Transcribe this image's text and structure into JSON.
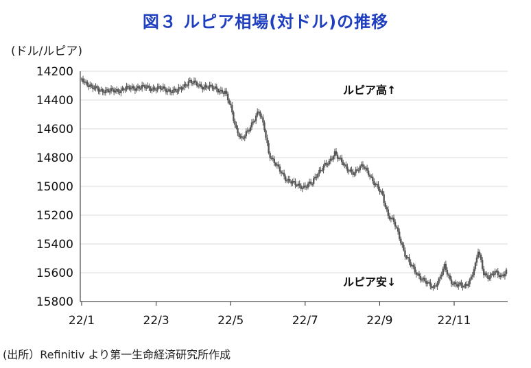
{
  "chart_data": {
    "type": "candlestick",
    "title": "図３ ルピア相場(対ドル)の推移",
    "unit_label": "(ドル/ルピア)",
    "source": "(出所）Refinitiv より第一生命経済研究所作成",
    "y_inverted": true,
    "ylim": [
      14200,
      15800
    ],
    "yticks": [
      "14200",
      "14400",
      "14600",
      "14800",
      "15000",
      "15200",
      "15400",
      "15600",
      "15800"
    ],
    "xticks": [
      "22/1",
      "22/3",
      "22/5",
      "22/7",
      "22/9",
      "22/11"
    ],
    "annotations": {
      "top": "ルピア高↑",
      "bottom": "ルピア安↓"
    },
    "grid": "horizontal",
    "color": "#555555",
    "anchors": [
      [
        0,
        14250
      ],
      [
        8,
        14320
      ],
      [
        20,
        14340
      ],
      [
        40,
        14310
      ],
      [
        55,
        14320
      ],
      [
        68,
        14340
      ],
      [
        76,
        14270
      ],
      [
        84,
        14300
      ],
      [
        96,
        14320
      ],
      [
        102,
        14350
      ],
      [
        106,
        14450
      ],
      [
        110,
        14600
      ],
      [
        114,
        14680
      ],
      [
        118,
        14620
      ],
      [
        122,
        14540
      ],
      [
        126,
        14480
      ],
      [
        130,
        14600
      ],
      [
        133,
        14760
      ],
      [
        136,
        14820
      ],
      [
        140,
        14880
      ],
      [
        146,
        14950
      ],
      [
        152,
        14990
      ],
      [
        158,
        15000
      ],
      [
        164,
        14980
      ],
      [
        168,
        14900
      ],
      [
        172,
        14860
      ],
      [
        176,
        14840
      ],
      [
        180,
        14760
      ],
      [
        183,
        14800
      ],
      [
        188,
        14880
      ],
      [
        194,
        14900
      ],
      [
        200,
        14860
      ],
      [
        204,
        14900
      ],
      [
        208,
        14980
      ],
      [
        214,
        15060
      ],
      [
        218,
        15200
      ],
      [
        222,
        15250
      ],
      [
        226,
        15350
      ],
      [
        230,
        15470
      ],
      [
        234,
        15550
      ],
      [
        238,
        15600
      ],
      [
        242,
        15640
      ],
      [
        246,
        15680
      ],
      [
        250,
        15700
      ],
      [
        254,
        15650
      ],
      [
        258,
        15560
      ],
      [
        262,
        15650
      ],
      [
        266,
        15680
      ],
      [
        272,
        15700
      ],
      [
        276,
        15650
      ],
      [
        280,
        15550
      ],
      [
        282,
        15450
      ],
      [
        286,
        15600
      ],
      [
        290,
        15630
      ],
      [
        294,
        15600
      ],
      [
        298,
        15620
      ],
      [
        302,
        15590
      ]
    ]
  }
}
